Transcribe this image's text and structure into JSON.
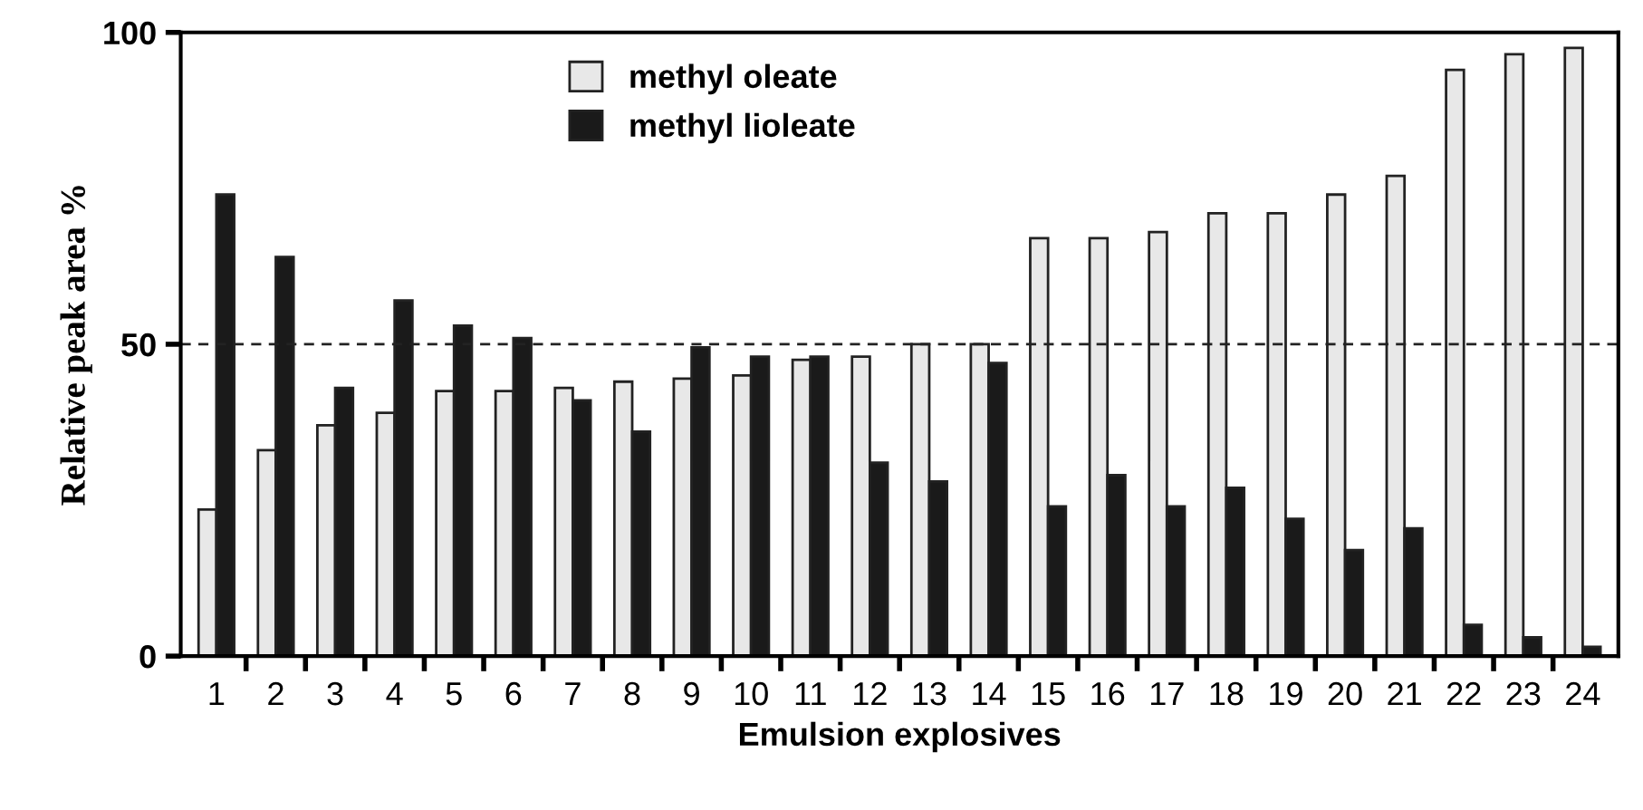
{
  "chart_data": {
    "type": "bar",
    "xlabel": "Emulsion explosives",
    "ylabel": "Relative peak area %",
    "categories": [
      "1",
      "2",
      "3",
      "4",
      "5",
      "6",
      "7",
      "8",
      "9",
      "10",
      "11",
      "12",
      "13",
      "14",
      "15",
      "16",
      "17",
      "18",
      "19",
      "20",
      "21",
      "22",
      "23",
      "24"
    ],
    "series": [
      {
        "name": "methyl oleate",
        "color": "#e8e8e8",
        "values": [
          23.5,
          33,
          37,
          39,
          42.5,
          42.5,
          43,
          44,
          44.5,
          45,
          47.5,
          48,
          50,
          50,
          67,
          67,
          68,
          71,
          71,
          74,
          77,
          94,
          96.5,
          97.5
        ]
      },
      {
        "name": "methyl lioleate",
        "color": "#1a1a1a",
        "values": [
          74,
          64,
          43,
          57,
          53,
          51,
          41,
          36,
          49.5,
          48,
          48,
          31,
          28,
          47,
          24,
          29,
          24,
          27,
          22,
          17,
          20.5,
          5,
          3,
          1.5
        ]
      }
    ],
    "ylim": [
      0,
      100
    ],
    "yticks": [
      0,
      50,
      100
    ],
    "ref_lines": [
      {
        "axis": "y",
        "value": 50,
        "line_style": "dashed"
      }
    ],
    "legend": "top",
    "grid": false
  }
}
